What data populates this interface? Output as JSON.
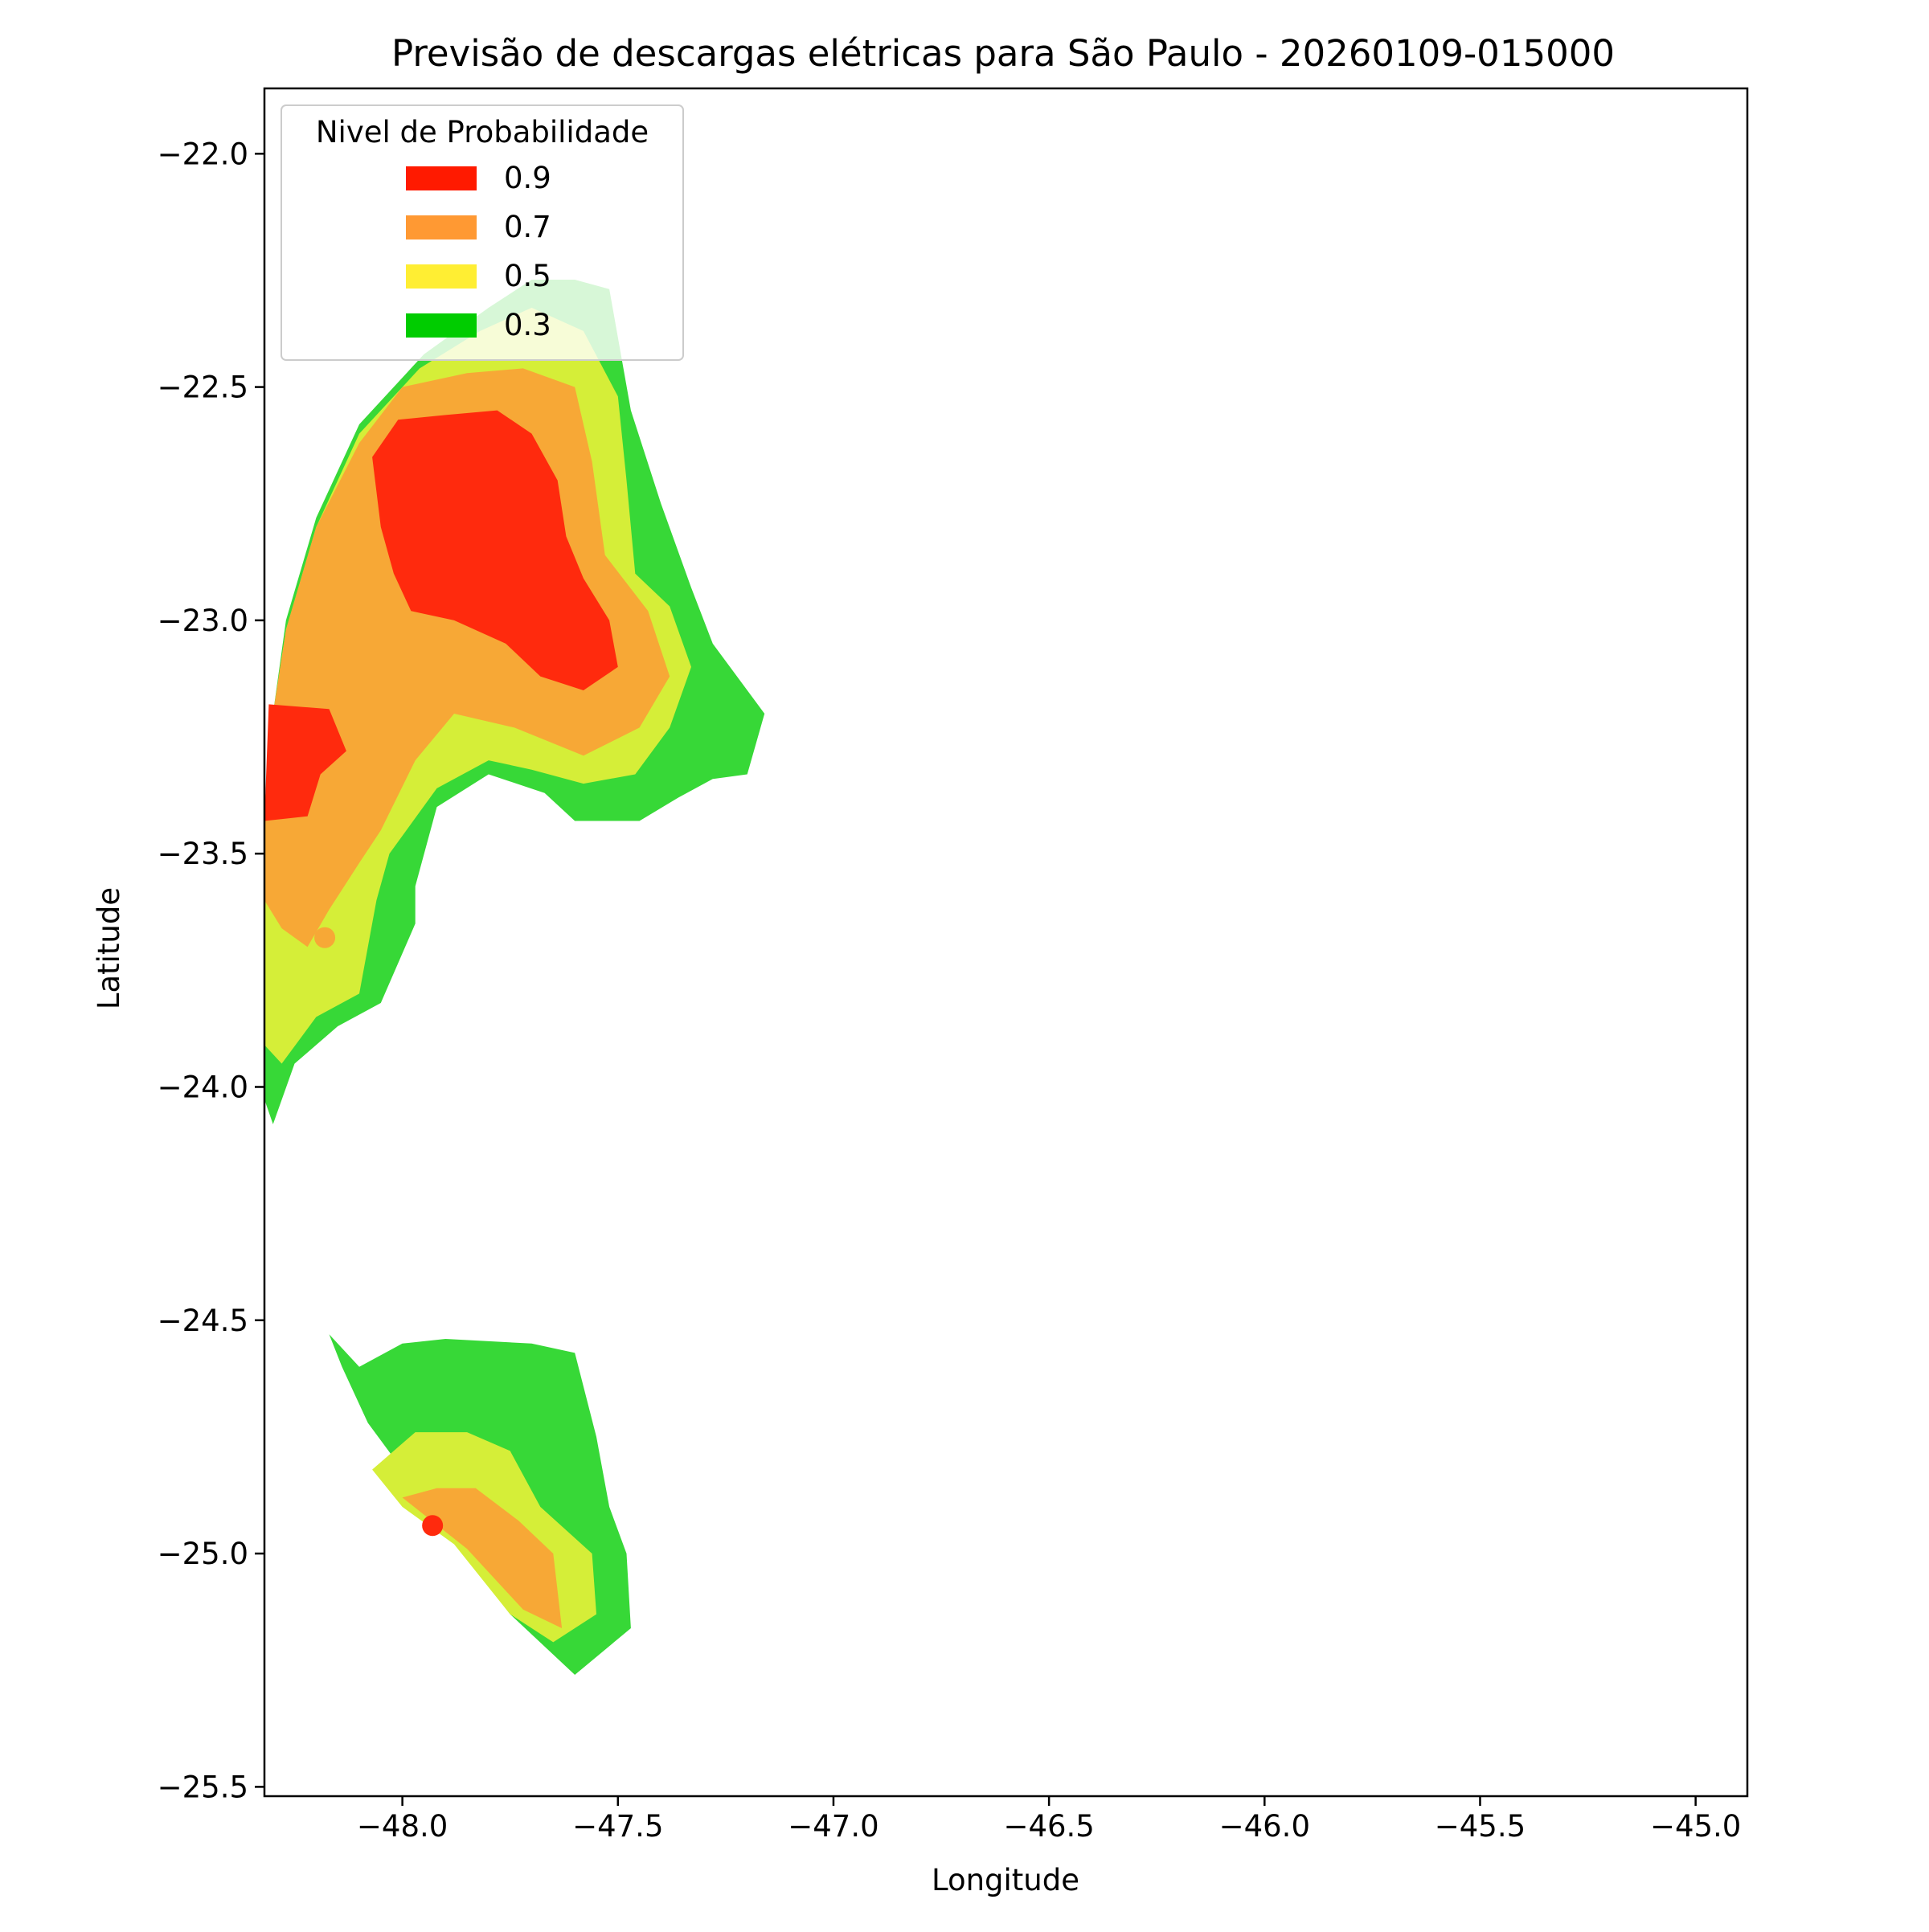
{
  "chart_data": {
    "type": "map-contour",
    "title": "Previsão de descargas elétricas para São Paulo - 20260109-015000",
    "xlabel": "Longitude",
    "ylabel": "Latitude",
    "xlim": [
      -48.32,
      -44.88
    ],
    "ylim": [
      -25.52,
      -21.86
    ],
    "x_ticks": [
      -48.0,
      -47.5,
      -47.0,
      -46.5,
      -46.0,
      -45.5,
      -45.0
    ],
    "x_tick_labels": [
      "−48.0",
      "−47.5",
      "−47.0",
      "−46.5",
      "−46.0",
      "−45.5",
      "−45.0"
    ],
    "y_ticks": [
      -22.0,
      -22.5,
      -23.0,
      -23.5,
      -24.0,
      -24.5,
      -25.0,
      -25.5
    ],
    "y_tick_labels": [
      "−22.0",
      "−22.5",
      "−23.0",
      "−23.5",
      "−24.0",
      "−24.5",
      "−25.0",
      "−25.5"
    ],
    "grid": false,
    "legend": {
      "title": "Nivel de Probabilidade",
      "position": "upper-left",
      "entries": [
        {
          "label": "0.9",
          "color": "#ff1a00"
        },
        {
          "label": "0.7",
          "color": "#ff9933"
        },
        {
          "label": "0.5",
          "color": "#ffee33"
        },
        {
          "label": "0.3",
          "color": "#00cc00"
        }
      ]
    },
    "regions": [
      {
        "name": "north-0.3",
        "level": 0.3,
        "color": "#37d837",
        "coords": [
          [
            -48.32,
            -23.4
          ],
          [
            -48.3,
            -23.2
          ],
          [
            -48.27,
            -23.0
          ],
          [
            -48.2,
            -22.78
          ],
          [
            -48.1,
            -22.58
          ],
          [
            -47.95,
            -22.43
          ],
          [
            -47.8,
            -22.33
          ],
          [
            -47.7,
            -22.27
          ],
          [
            -47.6,
            -22.27
          ],
          [
            -47.52,
            -22.29
          ],
          [
            -47.47,
            -22.55
          ],
          [
            -47.4,
            -22.75
          ],
          [
            -47.33,
            -22.93
          ],
          [
            -47.28,
            -23.05
          ],
          [
            -47.16,
            -23.2
          ],
          [
            -47.2,
            -23.33
          ],
          [
            -47.28,
            -23.34
          ],
          [
            -47.36,
            -23.38
          ],
          [
            -47.45,
            -23.43
          ],
          [
            -47.6,
            -23.43
          ],
          [
            -47.67,
            -23.37
          ],
          [
            -47.8,
            -23.33
          ],
          [
            -47.92,
            -23.4
          ],
          [
            -47.97,
            -23.57
          ],
          [
            -47.97,
            -23.65
          ],
          [
            -48.05,
            -23.82
          ],
          [
            -48.15,
            -23.87
          ],
          [
            -48.25,
            -23.95
          ],
          [
            -48.3,
            -24.08
          ],
          [
            -48.33,
            -24.0
          ],
          [
            -48.33,
            -23.5
          ]
        ]
      },
      {
        "name": "north-0.5",
        "level": 0.5,
        "color": "#d5ee38",
        "coords": [
          [
            -48.32,
            -23.4
          ],
          [
            -48.3,
            -23.2
          ],
          [
            -48.27,
            -23.02
          ],
          [
            -48.2,
            -22.8
          ],
          [
            -48.1,
            -22.6
          ],
          [
            -47.96,
            -22.46
          ],
          [
            -47.82,
            -22.38
          ],
          [
            -47.7,
            -22.33
          ],
          [
            -47.58,
            -22.38
          ],
          [
            -47.5,
            -22.52
          ],
          [
            -47.48,
            -22.7
          ],
          [
            -47.46,
            -22.9
          ],
          [
            -47.38,
            -22.97
          ],
          [
            -47.33,
            -23.1
          ],
          [
            -47.38,
            -23.23
          ],
          [
            -47.46,
            -23.33
          ],
          [
            -47.58,
            -23.35
          ],
          [
            -47.7,
            -23.32
          ],
          [
            -47.8,
            -23.3
          ],
          [
            -47.92,
            -23.36
          ],
          [
            -48.03,
            -23.5
          ],
          [
            -48.06,
            -23.6
          ],
          [
            -48.1,
            -23.8
          ],
          [
            -48.2,
            -23.85
          ],
          [
            -48.28,
            -23.95
          ],
          [
            -48.33,
            -23.9
          ]
        ]
      },
      {
        "name": "north-0.7",
        "level": 0.7,
        "color": "#f7a836",
        "coords": [
          [
            -48.32,
            -23.4
          ],
          [
            -48.3,
            -23.2
          ],
          [
            -48.27,
            -23.02
          ],
          [
            -48.2,
            -22.8
          ],
          [
            -48.1,
            -22.62
          ],
          [
            -48.0,
            -22.5
          ],
          [
            -47.85,
            -22.47
          ],
          [
            -47.72,
            -22.46
          ],
          [
            -47.6,
            -22.5
          ],
          [
            -47.56,
            -22.66
          ],
          [
            -47.53,
            -22.86
          ],
          [
            -47.43,
            -22.98
          ],
          [
            -47.38,
            -23.12
          ],
          [
            -47.45,
            -23.23
          ],
          [
            -47.58,
            -23.29
          ],
          [
            -47.74,
            -23.23
          ],
          [
            -47.88,
            -23.2
          ],
          [
            -47.97,
            -23.3
          ],
          [
            -48.05,
            -23.45
          ],
          [
            -48.1,
            -23.52
          ],
          [
            -48.17,
            -23.62
          ],
          [
            -48.22,
            -23.7
          ],
          [
            -48.28,
            -23.66
          ],
          [
            -48.32,
            -23.6
          ]
        ]
      },
      {
        "name": "north-0.9",
        "level": 0.9,
        "color": "#ff2a0d",
        "coords": [
          [
            -48.07,
            -22.65
          ],
          [
            -48.01,
            -22.57
          ],
          [
            -47.9,
            -22.56
          ],
          [
            -47.78,
            -22.55
          ],
          [
            -47.7,
            -22.6
          ],
          [
            -47.64,
            -22.7
          ],
          [
            -47.62,
            -22.82
          ],
          [
            -47.58,
            -22.91
          ],
          [
            -47.52,
            -23.0
          ],
          [
            -47.5,
            -23.1
          ],
          [
            -47.58,
            -23.15
          ],
          [
            -47.68,
            -23.12
          ],
          [
            -47.76,
            -23.05
          ],
          [
            -47.88,
            -23.0
          ],
          [
            -47.98,
            -22.98
          ],
          [
            -48.02,
            -22.9
          ],
          [
            -48.05,
            -22.8
          ]
        ]
      },
      {
        "name": "west-0.9",
        "level": 0.9,
        "color": "#ff2a0d",
        "coords": [
          [
            -48.31,
            -23.18
          ],
          [
            -48.17,
            -23.19
          ],
          [
            -48.13,
            -23.28
          ],
          [
            -48.19,
            -23.33
          ],
          [
            -48.22,
            -23.42
          ],
          [
            -48.32,
            -23.43
          ]
        ]
      },
      {
        "name": "south-0.3",
        "level": 0.3,
        "color": "#37d837",
        "coords": [
          [
            -48.17,
            -24.53
          ],
          [
            -48.1,
            -24.6
          ],
          [
            -48.0,
            -24.55
          ],
          [
            -47.9,
            -24.54
          ],
          [
            -47.7,
            -24.55
          ],
          [
            -47.6,
            -24.57
          ],
          [
            -47.55,
            -24.75
          ],
          [
            -47.52,
            -24.9
          ],
          [
            -47.48,
            -25.0
          ],
          [
            -47.47,
            -25.16
          ],
          [
            -47.6,
            -25.26
          ],
          [
            -47.75,
            -25.13
          ],
          [
            -47.9,
            -24.95
          ],
          [
            -48.0,
            -24.82
          ],
          [
            -48.08,
            -24.72
          ],
          [
            -48.14,
            -24.6
          ]
        ]
      },
      {
        "name": "south-0.5",
        "level": 0.5,
        "color": "#d5ee38",
        "coords": [
          [
            -48.07,
            -24.82
          ],
          [
            -47.97,
            -24.74
          ],
          [
            -47.85,
            -24.74
          ],
          [
            -47.75,
            -24.78
          ],
          [
            -47.68,
            -24.9
          ],
          [
            -47.56,
            -25.0
          ],
          [
            -47.55,
            -25.13
          ],
          [
            -47.65,
            -25.19
          ],
          [
            -47.75,
            -25.13
          ],
          [
            -47.88,
            -24.98
          ],
          [
            -48.0,
            -24.9
          ]
        ]
      },
      {
        "name": "south-0.7",
        "level": 0.7,
        "color": "#f7a836",
        "coords": [
          [
            -48.0,
            -24.88
          ],
          [
            -47.92,
            -24.86
          ],
          [
            -47.83,
            -24.86
          ],
          [
            -47.73,
            -24.93
          ],
          [
            -47.65,
            -25.0
          ],
          [
            -47.63,
            -25.16
          ],
          [
            -47.72,
            -25.12
          ],
          [
            -47.85,
            -24.99
          ]
        ]
      }
    ],
    "points": [
      {
        "lon": -48.18,
        "lat": -23.68,
        "level": 0.7,
        "color": "#f7a836"
      },
      {
        "lon": -47.93,
        "lat": -24.94,
        "level": 0.9,
        "color": "#ff2a0d"
      }
    ]
  }
}
